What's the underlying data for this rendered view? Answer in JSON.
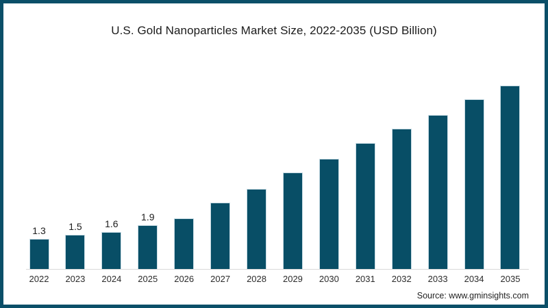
{
  "title": "U.S. Gold Nanoparticles Market Size, 2022-2035 (USD Billion)",
  "source_credit": "Source: www.gminsights.com",
  "colors": {
    "bar": "#084e66",
    "bar_edge": "#c7dbe4",
    "frame_border": "#0b4f68",
    "axis_line": "#d9d9d9"
  },
  "chart_data": {
    "type": "bar",
    "title": "U.S. Gold Nanoparticles Market Size, 2022-2035 (USD Billion)",
    "categories": [
      "2022",
      "2023",
      "2024",
      "2025",
      "2026",
      "2027",
      "2028",
      "2029",
      "2030",
      "2031",
      "2032",
      "2033",
      "2034",
      "2035"
    ],
    "values": [
      1.3,
      1.5,
      1.6,
      1.9,
      2.2,
      2.9,
      3.5,
      4.2,
      4.8,
      5.5,
      6.1,
      6.7,
      7.4,
      8.0
    ],
    "bar_labels": [
      "1.3",
      "1.5",
      "1.6",
      "1.9",
      "",
      "",
      "",
      "",
      "",
      "",
      "",
      "",
      "",
      ""
    ],
    "xlabel": "",
    "ylabel": "",
    "ylim": [
      0,
      8.5
    ],
    "grid": false,
    "legend": false,
    "y_axis_shown": false,
    "values_note": "2026-2035 values estimated from bar heights; only 2022-2025 have on-chart data labels"
  }
}
